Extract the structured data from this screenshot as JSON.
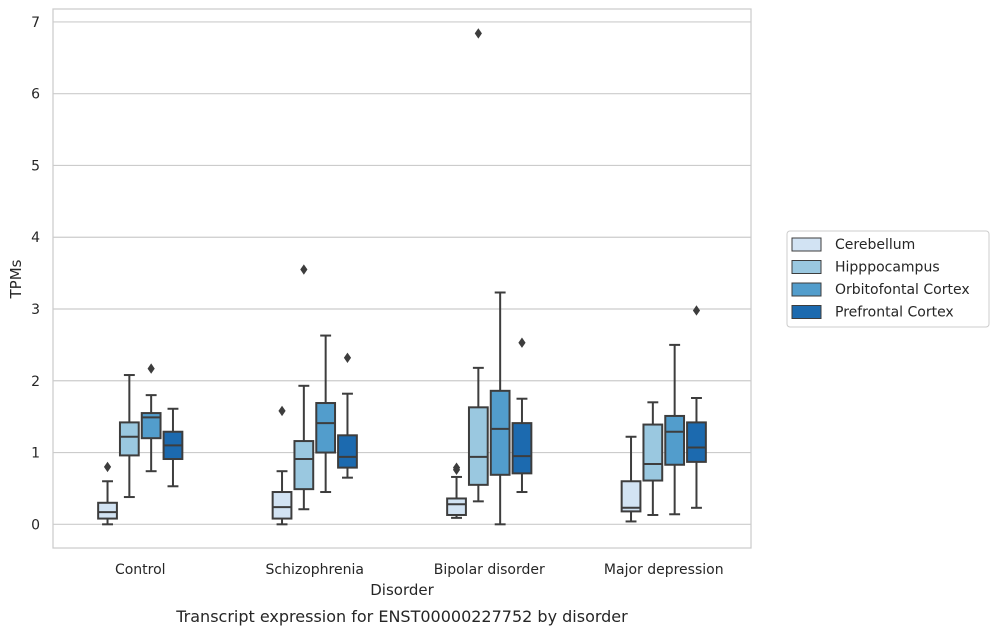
{
  "chart_data": {
    "type": "box",
    "title": "",
    "caption": "Transcript expression for ENST00000227752 by disorder",
    "xlabel": "Disorder",
    "ylabel": "TPMs",
    "ylim": [
      -0.33,
      7.18
    ],
    "yticks": [
      0,
      1,
      2,
      3,
      4,
      5,
      6,
      7
    ],
    "categories": [
      "Control",
      "Schizophrenia",
      "Bipolar disorder",
      "Major depression"
    ],
    "grid": "horizontal",
    "legend_position": "right",
    "series": [
      {
        "name": "Cerebellum",
        "color": "#d2e3f3",
        "boxes": [
          {
            "whisker_low": 0.0,
            "q1": 0.08,
            "median": 0.17,
            "q3": 0.3,
            "whisker_high": 0.6,
            "outliers": [
              0.8
            ]
          },
          {
            "whisker_low": 0.0,
            "q1": 0.08,
            "median": 0.24,
            "q3": 0.45,
            "whisker_high": 0.74,
            "outliers": [
              1.58
            ]
          },
          {
            "whisker_low": 0.09,
            "q1": 0.13,
            "median": 0.28,
            "q3": 0.36,
            "whisker_high": 0.66,
            "outliers": [
              0.76,
              0.79
            ]
          },
          {
            "whisker_low": 0.04,
            "q1": 0.18,
            "median": 0.23,
            "q3": 0.6,
            "whisker_high": 1.22,
            "outliers": []
          }
        ]
      },
      {
        "name": "Hipppocampus",
        "color": "#9ac8e0",
        "boxes": [
          {
            "whisker_low": 0.38,
            "q1": 0.96,
            "median": 1.22,
            "q3": 1.42,
            "whisker_high": 2.08,
            "outliers": []
          },
          {
            "whisker_low": 0.21,
            "q1": 0.49,
            "median": 0.91,
            "q3": 1.16,
            "whisker_high": 1.93,
            "outliers": [
              3.55
            ]
          },
          {
            "whisker_low": 0.32,
            "q1": 0.55,
            "median": 0.94,
            "q3": 1.63,
            "whisker_high": 2.18,
            "outliers": [
              6.84
            ]
          },
          {
            "whisker_low": 0.13,
            "q1": 0.61,
            "median": 0.84,
            "q3": 1.39,
            "whisker_high": 1.7,
            "outliers": []
          }
        ]
      },
      {
        "name": "Orbitofontal Cortex",
        "color": "#529dcc",
        "boxes": [
          {
            "whisker_low": 0.74,
            "q1": 1.2,
            "median": 1.49,
            "q3": 1.55,
            "whisker_high": 1.8,
            "outliers": [
              2.17
            ]
          },
          {
            "whisker_low": 0.45,
            "q1": 1.0,
            "median": 1.41,
            "q3": 1.69,
            "whisker_high": 2.63,
            "outliers": []
          },
          {
            "whisker_low": 0.0,
            "q1": 0.69,
            "median": 1.33,
            "q3": 1.86,
            "whisker_high": 3.23,
            "outliers": []
          },
          {
            "whisker_low": 0.14,
            "q1": 0.83,
            "median": 1.29,
            "q3": 1.51,
            "whisker_high": 2.5,
            "outliers": []
          }
        ]
      },
      {
        "name": "Prefrontal Cortex",
        "color": "#1c6aaf",
        "boxes": [
          {
            "whisker_low": 0.53,
            "q1": 0.91,
            "median": 1.1,
            "q3": 1.29,
            "whisker_high": 1.61,
            "outliers": []
          },
          {
            "whisker_low": 0.65,
            "q1": 0.79,
            "median": 0.94,
            "q3": 1.24,
            "whisker_high": 1.82,
            "outliers": [
              2.32
            ]
          },
          {
            "whisker_low": 0.45,
            "q1": 0.71,
            "median": 0.95,
            "q3": 1.41,
            "whisker_high": 1.75,
            "outliers": [
              2.53
            ]
          },
          {
            "whisker_low": 0.23,
            "q1": 0.87,
            "median": 1.07,
            "q3": 1.42,
            "whisker_high": 1.76,
            "outliers": [
              2.98
            ]
          }
        ]
      }
    ]
  }
}
